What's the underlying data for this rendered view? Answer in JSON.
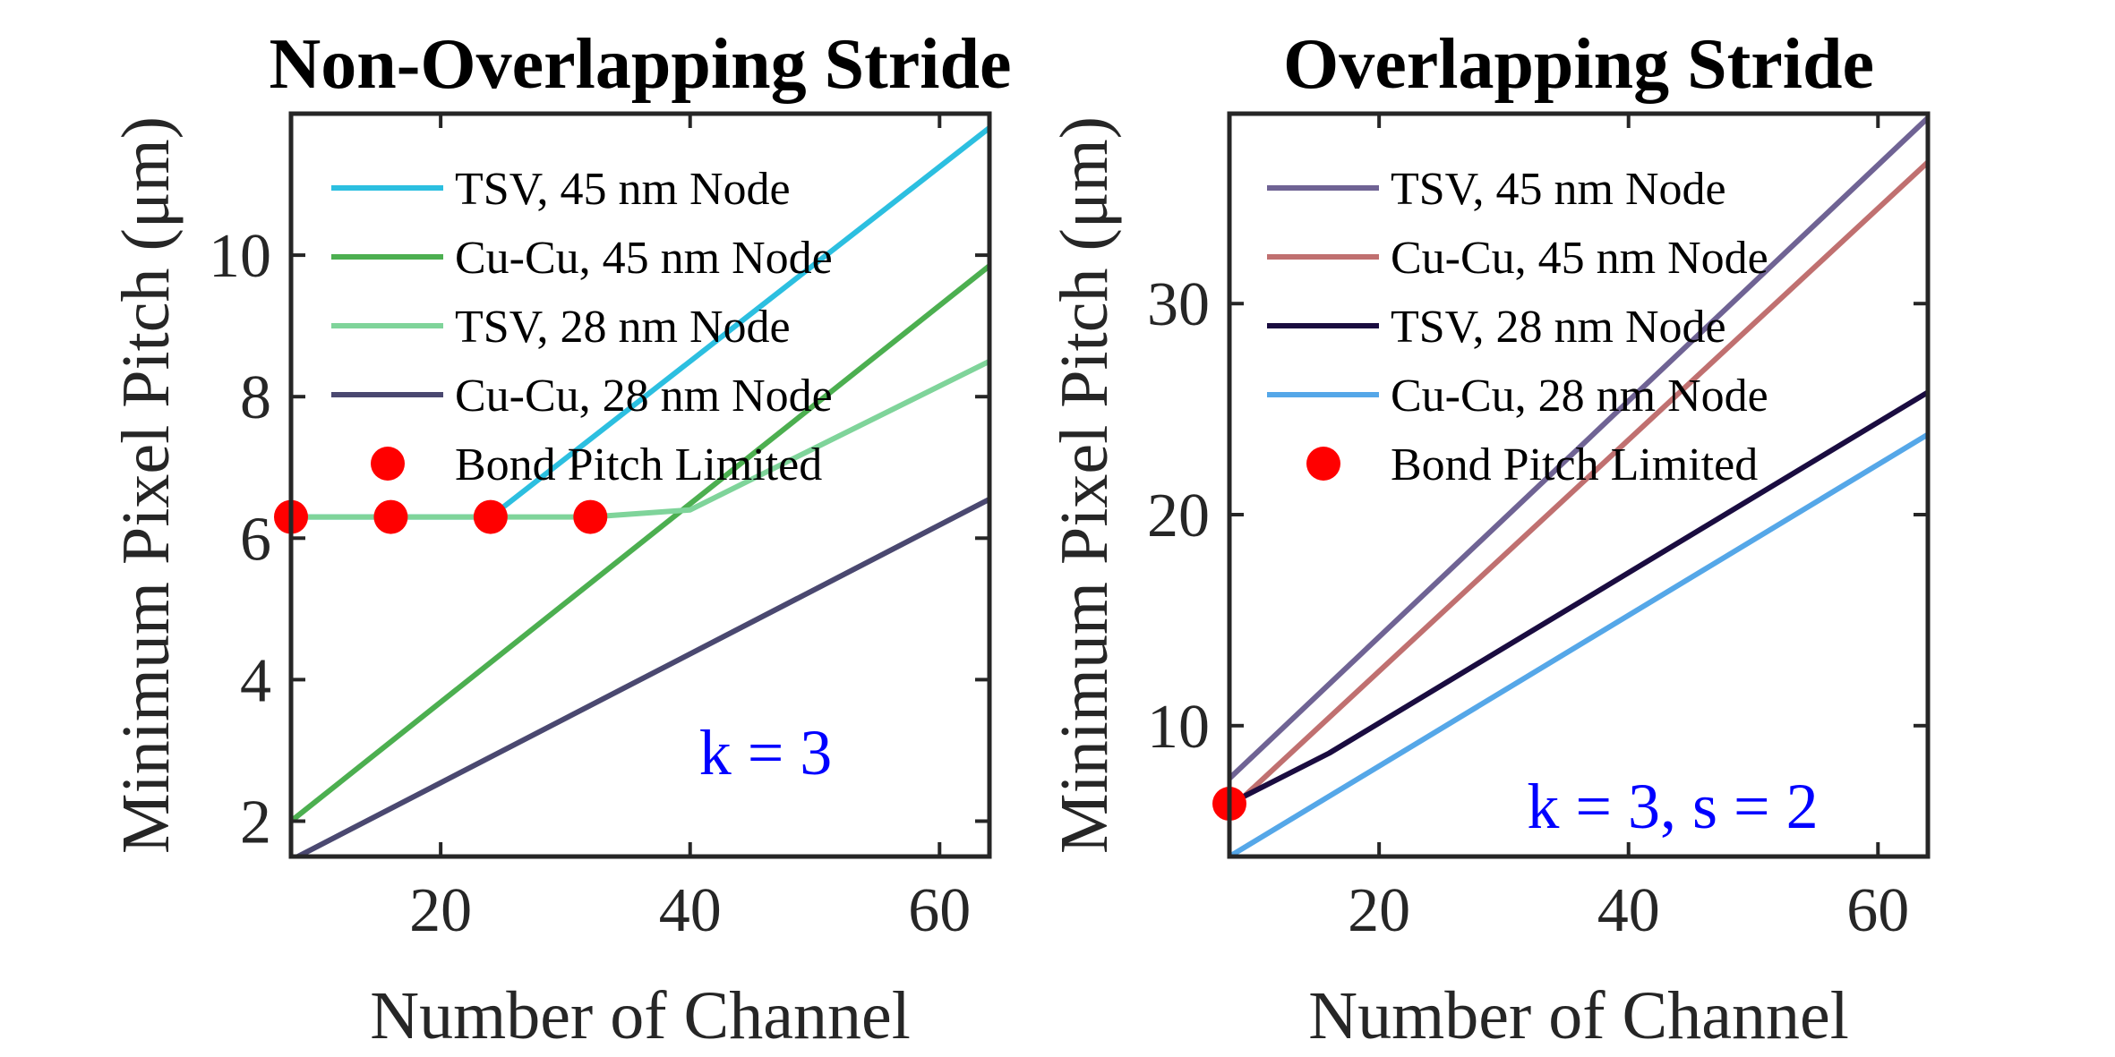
{
  "chart_data": [
    {
      "type": "line",
      "title": "Non-Overlapping Stride",
      "xlabel": "Number of Channel",
      "ylabel": "Minimum Pixel Pitch (μm)",
      "xlim": [
        8,
        64
      ],
      "ylim": [
        1.5,
        12
      ],
      "xticks": [
        20,
        40,
        60
      ],
      "yticks": [
        2,
        4,
        6,
        8,
        10
      ],
      "legend_position": "top-left",
      "annotation": "k = 3",
      "series": [
        {
          "name": "TSV, 45 nm Node",
          "color": "#2cbfe0",
          "x": [
            8,
            16,
            24,
            64
          ],
          "y": [
            6.3,
            6.3,
            6.3,
            11.8
          ]
        },
        {
          "name": "Cu-Cu, 45 nm Node",
          "color": "#4caf50",
          "x": [
            8,
            64
          ],
          "y": [
            2.0,
            9.85
          ]
        },
        {
          "name": "TSV, 28 nm Node",
          "color": "#7fd49a",
          "x": [
            8,
            16,
            24,
            32,
            40,
            64
          ],
          "y": [
            6.3,
            6.3,
            6.3,
            6.3,
            6.4,
            8.5
          ]
        },
        {
          "name": "Cu-Cu, 28 nm Node",
          "color": "#4a4870",
          "x": [
            8,
            64
          ],
          "y": [
            1.45,
            6.55
          ]
        }
      ],
      "markers": {
        "name": "Bond Pitch Limited",
        "color": "#ff0000",
        "x": [
          8,
          16,
          24,
          32
        ],
        "y": [
          6.3,
          6.3,
          6.3,
          6.3
        ]
      }
    },
    {
      "type": "line",
      "title": "Overlapping Stride",
      "xlabel": "Number of Channel",
      "ylabel": "Minimum Pixel Pitch (μm)",
      "xlim": [
        8,
        64
      ],
      "ylim": [
        3.8,
        39
      ],
      "xticks": [
        20,
        40,
        60
      ],
      "yticks": [
        10,
        20,
        30
      ],
      "legend_position": "top-left",
      "annotation": "k = 3, s = 2",
      "series": [
        {
          "name": "TSV, 45 nm Node",
          "color": "#6f6394",
          "x": [
            8,
            64
          ],
          "y": [
            7.5,
            38.8
          ]
        },
        {
          "name": "Cu-Cu, 45 nm Node",
          "color": "#c07070",
          "x": [
            8,
            64
          ],
          "y": [
            6.0,
            36.7
          ]
        },
        {
          "name": "TSV, 28 nm Node",
          "color": "#1a0c40",
          "x": [
            8,
            16,
            64
          ],
          "y": [
            6.3,
            8.7,
            25.8
          ]
        },
        {
          "name": "Cu-Cu, 28 nm Node",
          "color": "#55a7e8",
          "x": [
            8,
            64
          ],
          "y": [
            3.8,
            23.8
          ]
        }
      ],
      "markers": {
        "name": "Bond Pitch Limited",
        "color": "#ff0000",
        "x": [
          8
        ],
        "y": [
          6.3
        ]
      }
    }
  ]
}
